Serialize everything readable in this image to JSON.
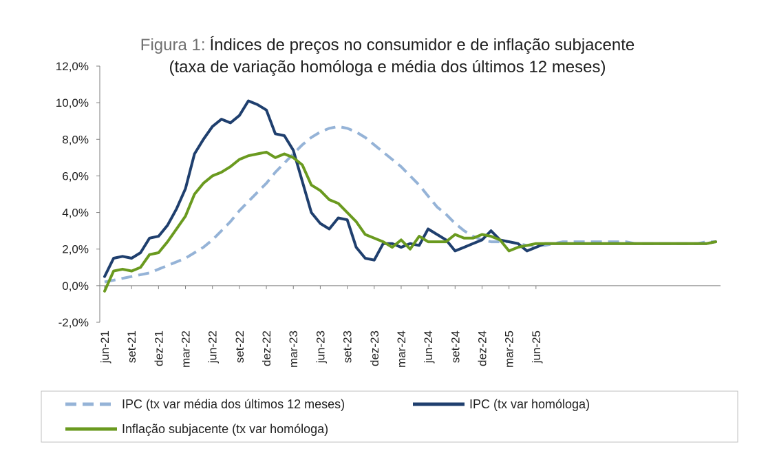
{
  "chart_data": {
    "type": "line",
    "title_prefix": "Figura 1:",
    "title_main": "Índices de preços no consumidor e de inflação subjacente",
    "subtitle": "(taxa de variação homóloga e média dos últimos 12 meses)",
    "ylim": [
      -2,
      12
    ],
    "y_ticks": [
      "-2,0%",
      "0,0%",
      "2,0%",
      "4,0%",
      "6,0%",
      "8,0%",
      "10,0%",
      "12,0%"
    ],
    "y_tick_values": [
      -2,
      0,
      2,
      4,
      6,
      8,
      10,
      12
    ],
    "x_tick_labels": [
      "jun-21",
      "set-21",
      "dez-21",
      "mar-22",
      "jun-22",
      "set-22",
      "dez-22",
      "mar-23",
      "jun-23",
      "set-23",
      "dez-23",
      "mar-24",
      "jun-24",
      "set-24",
      "dez-24",
      "mar-25",
      "jun-25"
    ],
    "x_start": "jun-21",
    "x_end": "jun-25",
    "grid": false,
    "legend_position": "bottom",
    "series": [
      {
        "name": "IPC (tx var média dos últimos 12 meses)",
        "color": "#95b3d7",
        "style": "dashed",
        "values": [
          0.2,
          0.3,
          0.4,
          0.5,
          0.6,
          0.7,
          0.9,
          1.1,
          1.3,
          1.5,
          1.8,
          2.1,
          2.5,
          3.0,
          3.5,
          4.1,
          4.6,
          5.1,
          5.6,
          6.2,
          6.7,
          7.2,
          7.7,
          8.1,
          8.4,
          8.6,
          8.7,
          8.6,
          8.4,
          8.1,
          7.7,
          7.3,
          6.9,
          6.5,
          6.0,
          5.5,
          4.9,
          4.3,
          3.9,
          3.4,
          3.0,
          2.7,
          2.5,
          2.4,
          2.4,
          2.4,
          2.3,
          2.2,
          2.2,
          2.2,
          2.3,
          2.4,
          2.4,
          2.4,
          2.4,
          2.4,
          2.4,
          2.4,
          2.4,
          2.3,
          2.3,
          2.3,
          2.3,
          2.3,
          2.3,
          2.3,
          2.3,
          2.4,
          2.4
        ]
      },
      {
        "name": "IPC (tx var homóloga)",
        "color": "#1f3f6e",
        "style": "solid",
        "values": [
          0.5,
          1.5,
          1.6,
          1.5,
          1.8,
          2.6,
          2.7,
          3.3,
          4.2,
          5.3,
          7.2,
          8.0,
          8.7,
          9.1,
          8.9,
          9.3,
          10.1,
          9.9,
          9.6,
          8.3,
          8.2,
          7.4,
          5.7,
          4.0,
          3.4,
          3.1,
          3.7,
          3.6,
          2.1,
          1.5,
          1.4,
          2.3,
          2.3,
          2.1,
          2.3,
          2.2,
          3.1,
          2.8,
          2.5,
          1.9,
          2.1,
          2.3,
          2.5,
          3.0,
          2.5,
          2.4,
          2.3,
          1.9,
          2.1,
          2.3,
          2.3,
          2.3,
          2.3,
          2.3,
          2.3,
          2.3,
          2.3,
          2.3,
          2.3,
          2.3,
          2.3,
          2.3,
          2.3,
          2.3,
          2.3,
          2.3,
          2.3,
          2.3,
          2.4
        ]
      },
      {
        "name": "Inflação subjacente (tx var homóloga)",
        "color": "#6a9a1f",
        "style": "solid",
        "values": [
          -0.3,
          0.8,
          0.9,
          0.8,
          1.0,
          1.7,
          1.8,
          2.4,
          3.1,
          3.8,
          5.0,
          5.6,
          6.0,
          6.2,
          6.5,
          6.9,
          7.1,
          7.2,
          7.3,
          7.0,
          7.2,
          7.0,
          6.6,
          5.5,
          5.2,
          4.7,
          4.5,
          4.0,
          3.5,
          2.8,
          2.6,
          2.4,
          2.1,
          2.5,
          2.0,
          2.7,
          2.4,
          2.4,
          2.4,
          2.8,
          2.6,
          2.6,
          2.8,
          2.7,
          2.5,
          1.9,
          2.1,
          2.2,
          2.3,
          2.3,
          2.3,
          2.3,
          2.3,
          2.3,
          2.3,
          2.3,
          2.3,
          2.3,
          2.3,
          2.3,
          2.3,
          2.3,
          2.3,
          2.3,
          2.3,
          2.3,
          2.3,
          2.3,
          2.4
        ]
      }
    ]
  }
}
